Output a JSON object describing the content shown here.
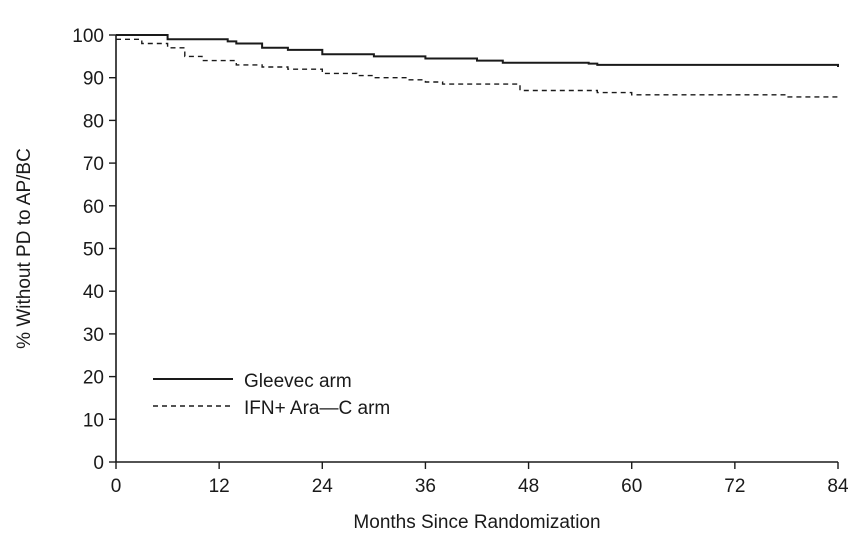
{
  "chart_data": {
    "type": "line",
    "title": "",
    "xlabel": "Months Since Randomization",
    "ylabel": "% Without PD to AP/BC",
    "xlim": [
      0,
      84
    ],
    "ylim": [
      0,
      100
    ],
    "x_ticks": [
      0,
      12,
      24,
      36,
      48,
      60,
      72,
      84
    ],
    "y_ticks": [
      0,
      10,
      20,
      30,
      40,
      50,
      60,
      70,
      80,
      90,
      100
    ],
    "grid": false,
    "legend_position": "bottom-left",
    "series": [
      {
        "name": "Gleevec arm",
        "style": "solid",
        "color": "#1a1a1a",
        "points": [
          [
            0,
            100
          ],
          [
            6,
            99
          ],
          [
            13,
            98.5
          ],
          [
            14,
            98
          ],
          [
            17,
            97
          ],
          [
            20,
            96.5
          ],
          [
            24,
            95.5
          ],
          [
            30,
            95
          ],
          [
            36,
            94.5
          ],
          [
            42,
            94
          ],
          [
            45,
            93.5
          ],
          [
            50,
            93.5
          ],
          [
            55,
            93.3
          ],
          [
            56,
            93
          ],
          [
            60,
            93
          ],
          [
            66,
            93
          ],
          [
            72,
            93
          ],
          [
            78,
            93
          ],
          [
            84,
            92.5
          ]
        ]
      },
      {
        "name": "IFN+ Ara—C arm",
        "style": "dashed",
        "color": "#1a1a1a",
        "points": [
          [
            0,
            99
          ],
          [
            3,
            98
          ],
          [
            6,
            97
          ],
          [
            8,
            95
          ],
          [
            10,
            94
          ],
          [
            14,
            93
          ],
          [
            17,
            92.5
          ],
          [
            20,
            92
          ],
          [
            24,
            91
          ],
          [
            28,
            90.5
          ],
          [
            30,
            90
          ],
          [
            34,
            89.5
          ],
          [
            36,
            89
          ],
          [
            38,
            88.5
          ],
          [
            46,
            88.5
          ],
          [
            47,
            87
          ],
          [
            50,
            87
          ],
          [
            56,
            86.5
          ],
          [
            60,
            86
          ],
          [
            66,
            86
          ],
          [
            72,
            86
          ],
          [
            78,
            85.5
          ],
          [
            84,
            85
          ]
        ]
      }
    ]
  }
}
